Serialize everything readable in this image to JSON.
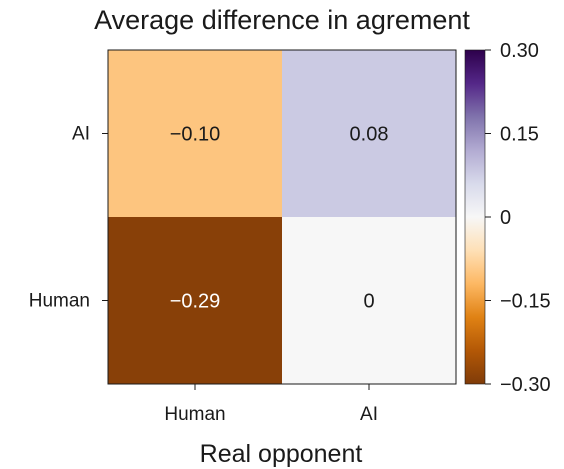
{
  "chart_data": {
    "type": "heatmap",
    "title": "Average difference in agrement",
    "xlabel": "Real opponent",
    "ylabel": "",
    "x_categories": [
      "Human",
      "AI"
    ],
    "y_categories": [
      "AI",
      "Human"
    ],
    "values": [
      [
        -0.1,
        0.08
      ],
      [
        -0.29,
        0
      ]
    ],
    "value_labels": [
      [
        "−0.10",
        "0.08"
      ],
      [
        "−0.29",
        "0"
      ]
    ],
    "colorbar": {
      "range": [
        -0.3,
        0.3
      ],
      "ticks": [
        0.3,
        0.15,
        0,
        -0.15,
        -0.3
      ],
      "tick_labels": [
        "0.30",
        "0.15",
        "0",
        "−0.15",
        "−0.30"
      ],
      "colormap": "PuOr",
      "color_stops": [
        "#7f3b08",
        "#b35806",
        "#e08214",
        "#fdb863",
        "#fee0b6",
        "#f7f7f7",
        "#d8daeb",
        "#b2abd2",
        "#8073ac",
        "#542788",
        "#2d004b"
      ]
    }
  }
}
